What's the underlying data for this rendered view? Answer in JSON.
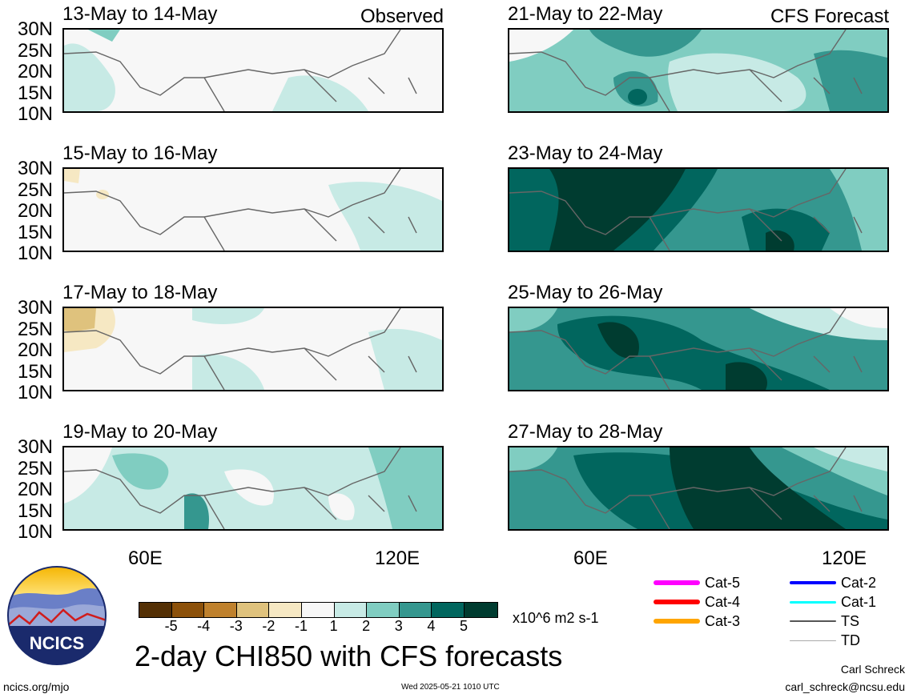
{
  "panels": {
    "observed": [
      {
        "title": "13-May to 14-May",
        "tag": "Observed"
      },
      {
        "title": "15-May to 16-May",
        "tag": ""
      },
      {
        "title": "17-May to 18-May",
        "tag": ""
      },
      {
        "title": "19-May to 20-May",
        "tag": ""
      }
    ],
    "forecast": [
      {
        "title": "21-May to 22-May",
        "tag": "CFS Forecast"
      },
      {
        "title": "23-May to 24-May",
        "tag": ""
      },
      {
        "title": "25-May to 26-May",
        "tag": ""
      },
      {
        "title": "27-May to 28-May",
        "tag": ""
      }
    ]
  },
  "axes": {
    "lat_ticks": [
      "30N",
      "25N",
      "20N",
      "15N",
      "10N"
    ],
    "lon_ticks": [
      "60E",
      "120E"
    ]
  },
  "colorbar": {
    "ticks": [
      "-5",
      "-4",
      "-3",
      "-2",
      "-1",
      "1",
      "2",
      "3",
      "4",
      "5"
    ],
    "colors": [
      "#543005",
      "#8c510a",
      "#bf812d",
      "#dfc27d",
      "#f6e8c3",
      "#f7f7f7",
      "#c7eae5",
      "#80cdc1",
      "#35978f",
      "#01665e",
      "#003c30"
    ],
    "units": "x10^6 m2 s-1"
  },
  "title": "2-day CHI850 with CFS forecasts",
  "legend": [
    {
      "label": "Cat-5",
      "color": "#ff00ff"
    },
    {
      "label": "Cat-4",
      "color": "#ff0000"
    },
    {
      "label": "Cat-3",
      "color": "#ffa500"
    },
    {
      "label": "Cat-2",
      "color": "#0000ff"
    },
    {
      "label": "Cat-1",
      "color": "#00ffff"
    },
    {
      "label": "TS",
      "color": "#555555"
    },
    {
      "label": "TD",
      "color": "#aaaaaa"
    }
  ],
  "logo": {
    "text": "NCICS"
  },
  "footer": {
    "url": "ncics.org/mjo",
    "timestamp": "Wed 2025-05-21 1010 UTC",
    "author": "Carl Schreck",
    "email": "carl_schreck@ncsu.edu"
  }
}
